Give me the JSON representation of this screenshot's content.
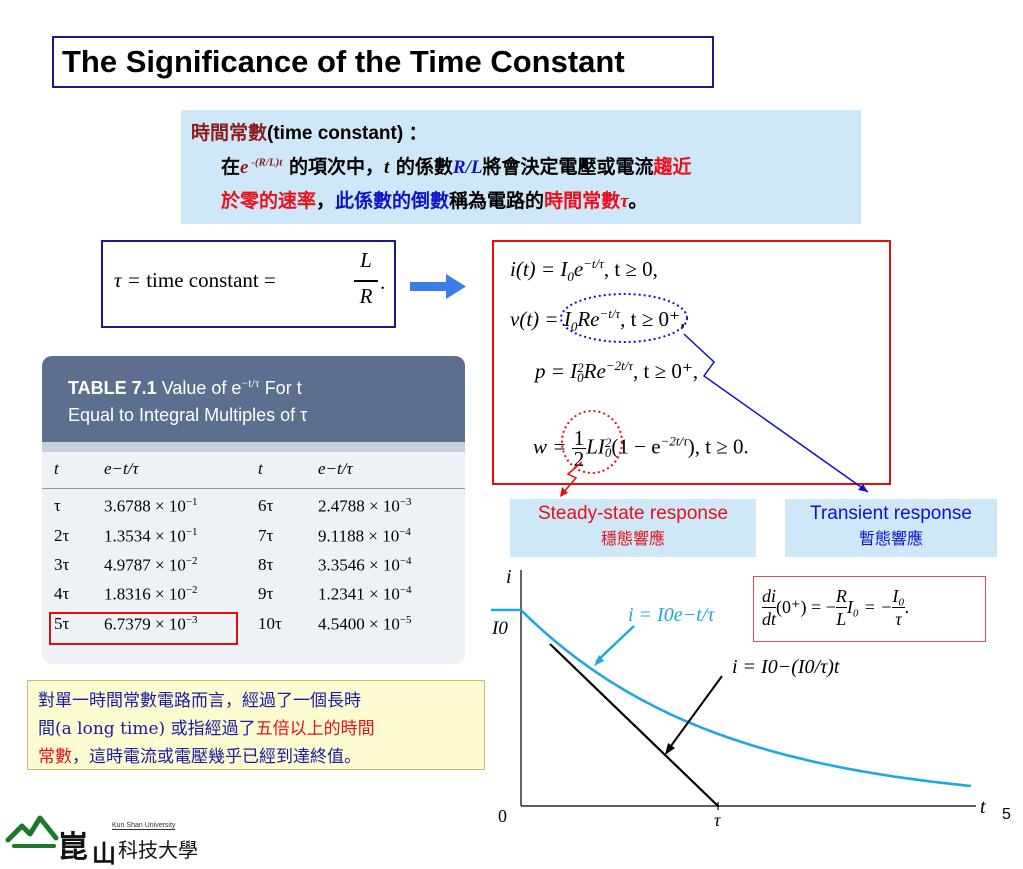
{
  "slide": {
    "title": "The Significance of the Time Constant",
    "page_number": "5"
  },
  "note": {
    "line1_zh": "時間常數",
    "line1_en": "(time constant) ：",
    "line2_pre": "在",
    "line2_exp_base": "e",
    "line2_exp_sup": " -(R/L)t",
    "line2_mid": " 的項次中，",
    "line2_t": "t",
    "line2_mid2": " 的係數",
    "line2_coef": "R/L",
    "line2_post": "將會決定電壓或電流",
    "line2_red": "趨近",
    "line3_red": "於零的速率",
    "line3_comma": "，",
    "line3_blue": "此係數的倒數",
    "line3_mid": "稱為電路的",
    "line3_red2": "時間常數",
    "line3_tau": "τ",
    "line3_end": "。"
  },
  "tau_def": {
    "lhs": "τ = ",
    "text": "time constant",
    "eq": " = ",
    "num": "L",
    "den": "R",
    "dot": "."
  },
  "equations": [
    {
      "lhs": "i(t) = I",
      "sub": "0",
      "body": "e",
      "sup": "−t/τ",
      "cond": ",    t ≥ 0,"
    },
    {
      "lhs": "v(t) = I",
      "sub": "0",
      "body": "Re",
      "sup": "−t/τ",
      "cond": ",    t ≥ 0⁺,"
    },
    {
      "lhs": "p = I",
      "sub": "0",
      "sup0": "2",
      "body": "Re",
      "sup": "−2t/τ",
      "cond": ",    t ≥ 0⁺,"
    },
    {
      "lhs": "w = ",
      "frac_num": "1",
      "frac_den": "2",
      "body": "LI",
      "sub": "0",
      "sup0": "2",
      "tail": "(1 − e",
      "sup": "−2t/τ",
      "cond": "),    t ≥ 0."
    }
  ],
  "labels": {
    "steady_en": "Steady-state response",
    "steady_zh": "穩態響應",
    "transient_en": "Transient response",
    "transient_zh": "暫態響應"
  },
  "table": {
    "title_bold": "TABLE 7.1",
    "title_rest": "  Value of e",
    "title_sup": "−t/τ",
    "title_rest2": " For t",
    "title_line2": "Equal to Integral Multiples of τ",
    "headers": [
      "t",
      "e−t/τ",
      "t",
      "e−t/τ"
    ],
    "rows": [
      [
        "τ",
        "3.6788 × 10",
        "−1",
        "6τ",
        "2.4788 × 10",
        "−3"
      ],
      [
        "2τ",
        "1.3534 × 10",
        "−1",
        "7τ",
        "9.1188 × 10",
        "−4"
      ],
      [
        "3τ",
        "4.9787 × 10",
        "−2",
        "8τ",
        "3.3546 × 10",
        "−4"
      ],
      [
        "4τ",
        "1.8316 × 10",
        "−2",
        "9τ",
        "1.2341 × 10",
        "−4"
      ],
      [
        "5τ",
        "6.7379 × 10",
        "−3",
        "10τ",
        "4.5400 × 10",
        "−5"
      ]
    ]
  },
  "bottom_note": {
    "l1": "對單一時間常數電路而言，經過了一個長時",
    "l2_pre": "間(a long time) 或指經過了",
    "l2_red": "五倍以上的時間",
    "l3_red": "常數",
    "l3_post": "，這時電流或電壓幾乎已經到達終值。"
  },
  "graph": {
    "y_axis": "i",
    "x_axis": "t",
    "origin": "0",
    "I0": "I0",
    "tau": "τ",
    "curve_label": "i = I0e−t/τ",
    "tangent_label": "i = I0−(I0/τ)t",
    "curve_color": "#1fa8dc",
    "deriv": {
      "num": "di",
      "den": "dt",
      "arg": "(0⁺) = −",
      "r_num": "R",
      "r_den": "L",
      "mid": "I₀ = −",
      "i_num": "I₀",
      "i_den": "τ",
      "end": "."
    }
  },
  "logo": {
    "text_small": "Kun Shan University",
    "text_zh": "科技大學"
  }
}
